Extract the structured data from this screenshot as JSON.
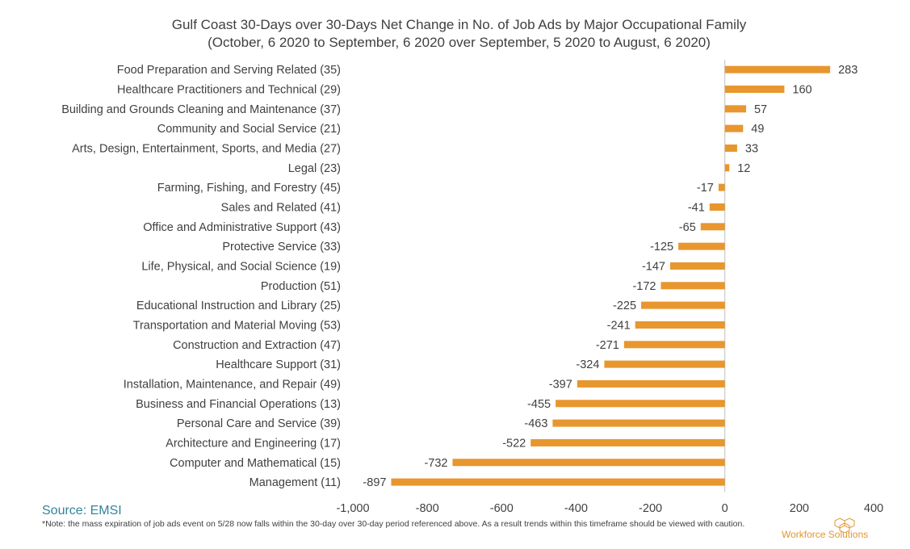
{
  "chart_data": {
    "type": "bar",
    "orientation": "horizontal",
    "title": "Gulf Coast 30-Days over 30-Days Net Change in No. of Job Ads by Major Occupational Family",
    "subtitle": "(October, 6 2020 to September, 6 2020 over September, 5 2020 to August, 6 2020)",
    "categories": [
      "Food Preparation and Serving Related (35)",
      "Healthcare Practitioners and Technical (29)",
      "Building and Grounds Cleaning and Maintenance (37)",
      "Community and Social Service (21)",
      "Arts, Design, Entertainment, Sports, and Media (27)",
      "Legal (23)",
      "Farming, Fishing, and Forestry (45)",
      "Sales and Related (41)",
      "Office and Administrative Support (43)",
      "Protective Service (33)",
      "Life, Physical, and Social Science (19)",
      "Production (51)",
      "Educational Instruction and Library (25)",
      "Transportation and Material Moving (53)",
      "Construction and Extraction (47)",
      "Healthcare Support (31)",
      "Installation, Maintenance, and Repair (49)",
      "Business and Financial Operations (13)",
      "Personal Care and Service (39)",
      "Architecture and Engineering (17)",
      "Computer and Mathematical (15)",
      "Management (11)"
    ],
    "values": [
      283,
      160,
      57,
      49,
      33,
      12,
      -17,
      -41,
      -65,
      -125,
      -147,
      -172,
      -225,
      -241,
      -271,
      -324,
      -397,
      -455,
      -463,
      -522,
      -732,
      -897
    ],
    "xlim": [
      -1000,
      400
    ],
    "xticks": [
      -1000,
      -800,
      -600,
      -400,
      -200,
      0,
      200,
      400
    ],
    "xtick_labels": [
      "-1,000",
      "-800",
      "-600",
      "-400",
      "-200",
      "0",
      "200",
      "400"
    ],
    "bar_color": "#e8962e",
    "grid": false,
    "legend": "none"
  },
  "source_label": "Source: EMSI",
  "note": "*Note: the mass expiration of job ads event on 5/28 now falls within the 30-day over 30-day period referenced above. As a result trends within this timeframe should be viewed with caution.",
  "logo": {
    "text": "Workforce Solutions",
    "color": "#e3962f",
    "icon": "hexagon-cluster-icon"
  }
}
